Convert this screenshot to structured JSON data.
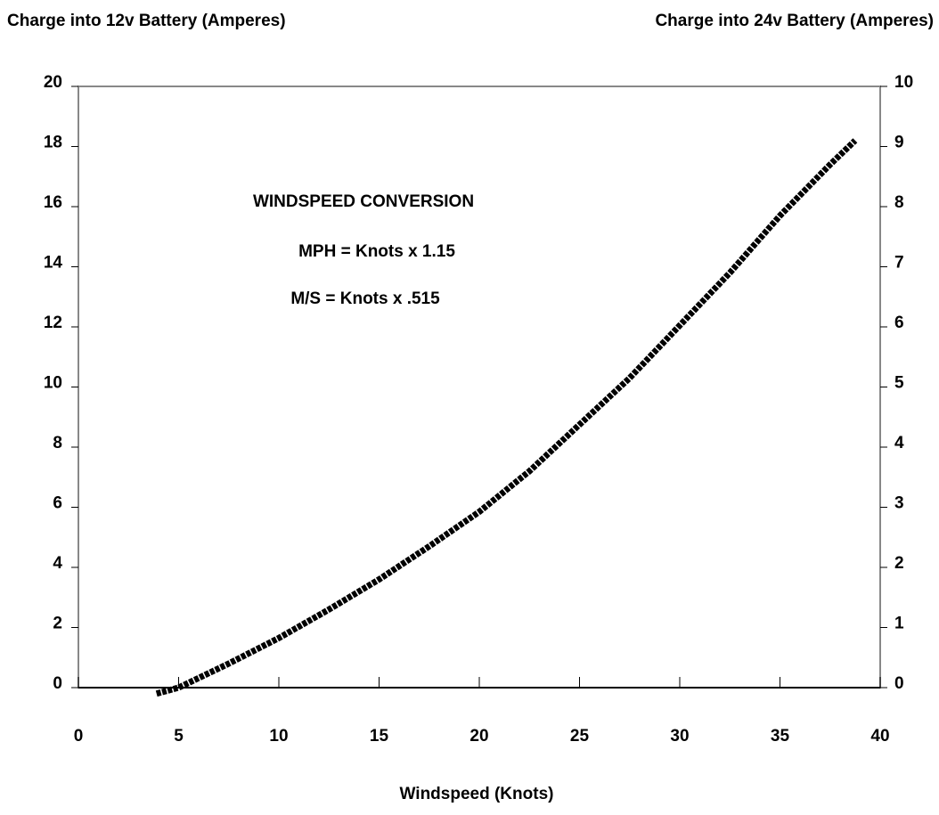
{
  "chart_data": {
    "type": "line",
    "y_label": "Charge into 12v Battery (Amperes)",
    "y2_label": "Charge into 24v Battery (Amperes)",
    "x_label": "Windspeed (Knots)",
    "annotations": [
      "WINDSPEED CONVERSION",
      "MPH = Knots x 1.15",
      "M/S = Knots x .515"
    ],
    "xlim": [
      0,
      40
    ],
    "xticks": [
      0,
      5,
      10,
      15,
      20,
      25,
      30,
      35,
      40
    ],
    "ylim": [
      0,
      20
    ],
    "yticks": [
      0,
      2,
      4,
      6,
      8,
      10,
      12,
      14,
      16,
      18,
      20
    ],
    "y2lim": [
      0,
      10
    ],
    "y2ticks": [
      0,
      1,
      2,
      3,
      4,
      5,
      6,
      7,
      8,
      9,
      10
    ],
    "series": [
      {
        "color": "#000000",
        "x": [
          3.9,
          5,
          7.5,
          10,
          12.5,
          15,
          17.5,
          20,
          22.5,
          25,
          27.5,
          30,
          32.5,
          35,
          37.5,
          38.75
        ],
        "values": [
          -0.2,
          0,
          0.8,
          1.65,
          2.6,
          3.6,
          4.7,
          5.85,
          7.2,
          8.75,
          10.3,
          12.05,
          13.8,
          15.7,
          17.4,
          18.2
        ]
      }
    ]
  }
}
